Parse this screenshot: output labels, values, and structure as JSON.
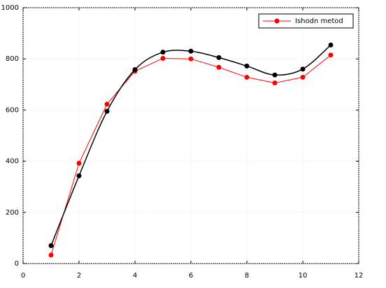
{
  "chart_data": {
    "type": "line",
    "x": [
      1,
      2,
      3,
      4,
      5,
      6,
      7,
      8,
      9,
      10,
      11
    ],
    "series": [
      {
        "name": "Ishodn metod",
        "color": "#ff0000",
        "smooth": false,
        "values": [
          33,
          392,
          623,
          752,
          802,
          800,
          767,
          728,
          706,
          728,
          815
        ]
      },
      {
        "color": "#000000",
        "smooth": true,
        "values": [
          70,
          343,
          595,
          758,
          826,
          830,
          805,
          772,
          737,
          760,
          854
        ]
      }
    ],
    "xlim": [
      0,
      12
    ],
    "xticks": [
      0,
      2,
      4,
      6,
      8,
      10,
      12
    ],
    "ylim": [
      0,
      1000
    ],
    "yticks": [
      0,
      200,
      400,
      600,
      800,
      1000
    ],
    "grid": true,
    "legend": "upper right"
  }
}
